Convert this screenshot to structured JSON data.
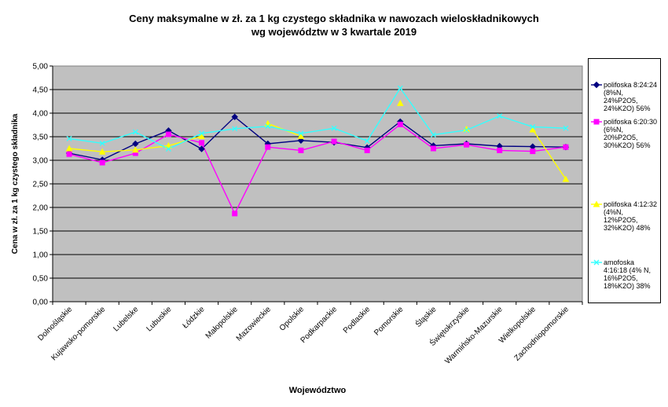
{
  "chart_data": {
    "type": "line",
    "title": "Ceny maksymalne  w zł. za 1 kg czystego składnika w nawozach wieloskładnikowych",
    "subtitle": "wg województw w 3 kwartale  2019",
    "xlabel": "Województwo",
    "ylabel": "Cena w zł. za 1 kg czystego składnika",
    "ylim": [
      0,
      5
    ],
    "ytick_step": 0.5,
    "yticks": [
      "0,00",
      "0,50",
      "1,00",
      "1,50",
      "2,00",
      "2,50",
      "3,00",
      "3,50",
      "4,00",
      "4,50",
      "5,00"
    ],
    "grid": true,
    "legend_position": "right",
    "plot_background": "#c0c0c0",
    "categories": [
      "Dolnośląskie",
      "Kujawsko-pomorskie",
      "Lubelske",
      "Lubuskie",
      "Łódzkie",
      "Małopolskie",
      "Mazowieckie",
      "Opolskie",
      "Podkarpackie",
      "Podlaskie",
      "Pomorskie",
      "Śląskie",
      "Świętokrzyskie",
      "Warmińsko-Mazurskie",
      "Wielkopolskie",
      "Zachodniopomorskie"
    ],
    "series": [
      {
        "name": "polifoska 8:24:24 (8%N, 24%P2O5, 24%K2O) 56%",
        "legend_lines": [
          "polifoska 8:24:24",
          "(8%N,",
          "24%P2O5,",
          "24%K2O) 56%"
        ],
        "color": "#000080",
        "marker": "diamond",
        "values": [
          3.15,
          3.01,
          3.35,
          3.63,
          3.24,
          3.92,
          3.35,
          3.42,
          3.38,
          3.27,
          3.82,
          3.31,
          3.35,
          3.3,
          3.29,
          3.28
        ]
      },
      {
        "name": "polifoska 6:20:30 (6%N, 20%P2O5, 30%K2O) 56%",
        "legend_lines": [
          "polifoska 6:20:30",
          "(6%N,",
          "20%P2O5,",
          "30%K2O) 56%"
        ],
        "color": "#ff00ff",
        "marker": "square",
        "values": [
          3.13,
          2.95,
          3.15,
          3.55,
          3.37,
          1.87,
          3.28,
          3.21,
          3.4,
          3.21,
          3.76,
          3.25,
          3.33,
          3.21,
          3.19,
          3.28
        ]
      },
      {
        "name": "polifoska 4:12:32 (4%N, 12%P2O5, 32%K2O) 48%",
        "legend_lines": [
          "polifoska 4:12:32",
          "(4%N,",
          "12%P2O5,",
          "32%K2O) 48%"
        ],
        "color": "#ffff00",
        "marker": "triangle",
        "values": [
          3.25,
          3.18,
          3.22,
          3.31,
          3.51,
          null,
          3.78,
          3.51,
          null,
          null,
          4.21,
          null,
          3.66,
          null,
          3.65,
          2.6
        ]
      },
      {
        "name": "amofoska 4:16:18 (4% N, 16%P2O5, 18%K2O) 38%",
        "legend_lines": [
          "amofoska",
          "4:16:18 (4% N,",
          "16%P2O5,",
          "18%K2O) 38%"
        ],
        "color": "#33ffff",
        "marker": "x",
        "values": [
          3.46,
          3.36,
          3.6,
          3.24,
          3.57,
          3.67,
          3.72,
          3.57,
          3.68,
          3.41,
          4.53,
          3.54,
          3.64,
          3.94,
          3.71,
          3.68
        ]
      }
    ]
  }
}
